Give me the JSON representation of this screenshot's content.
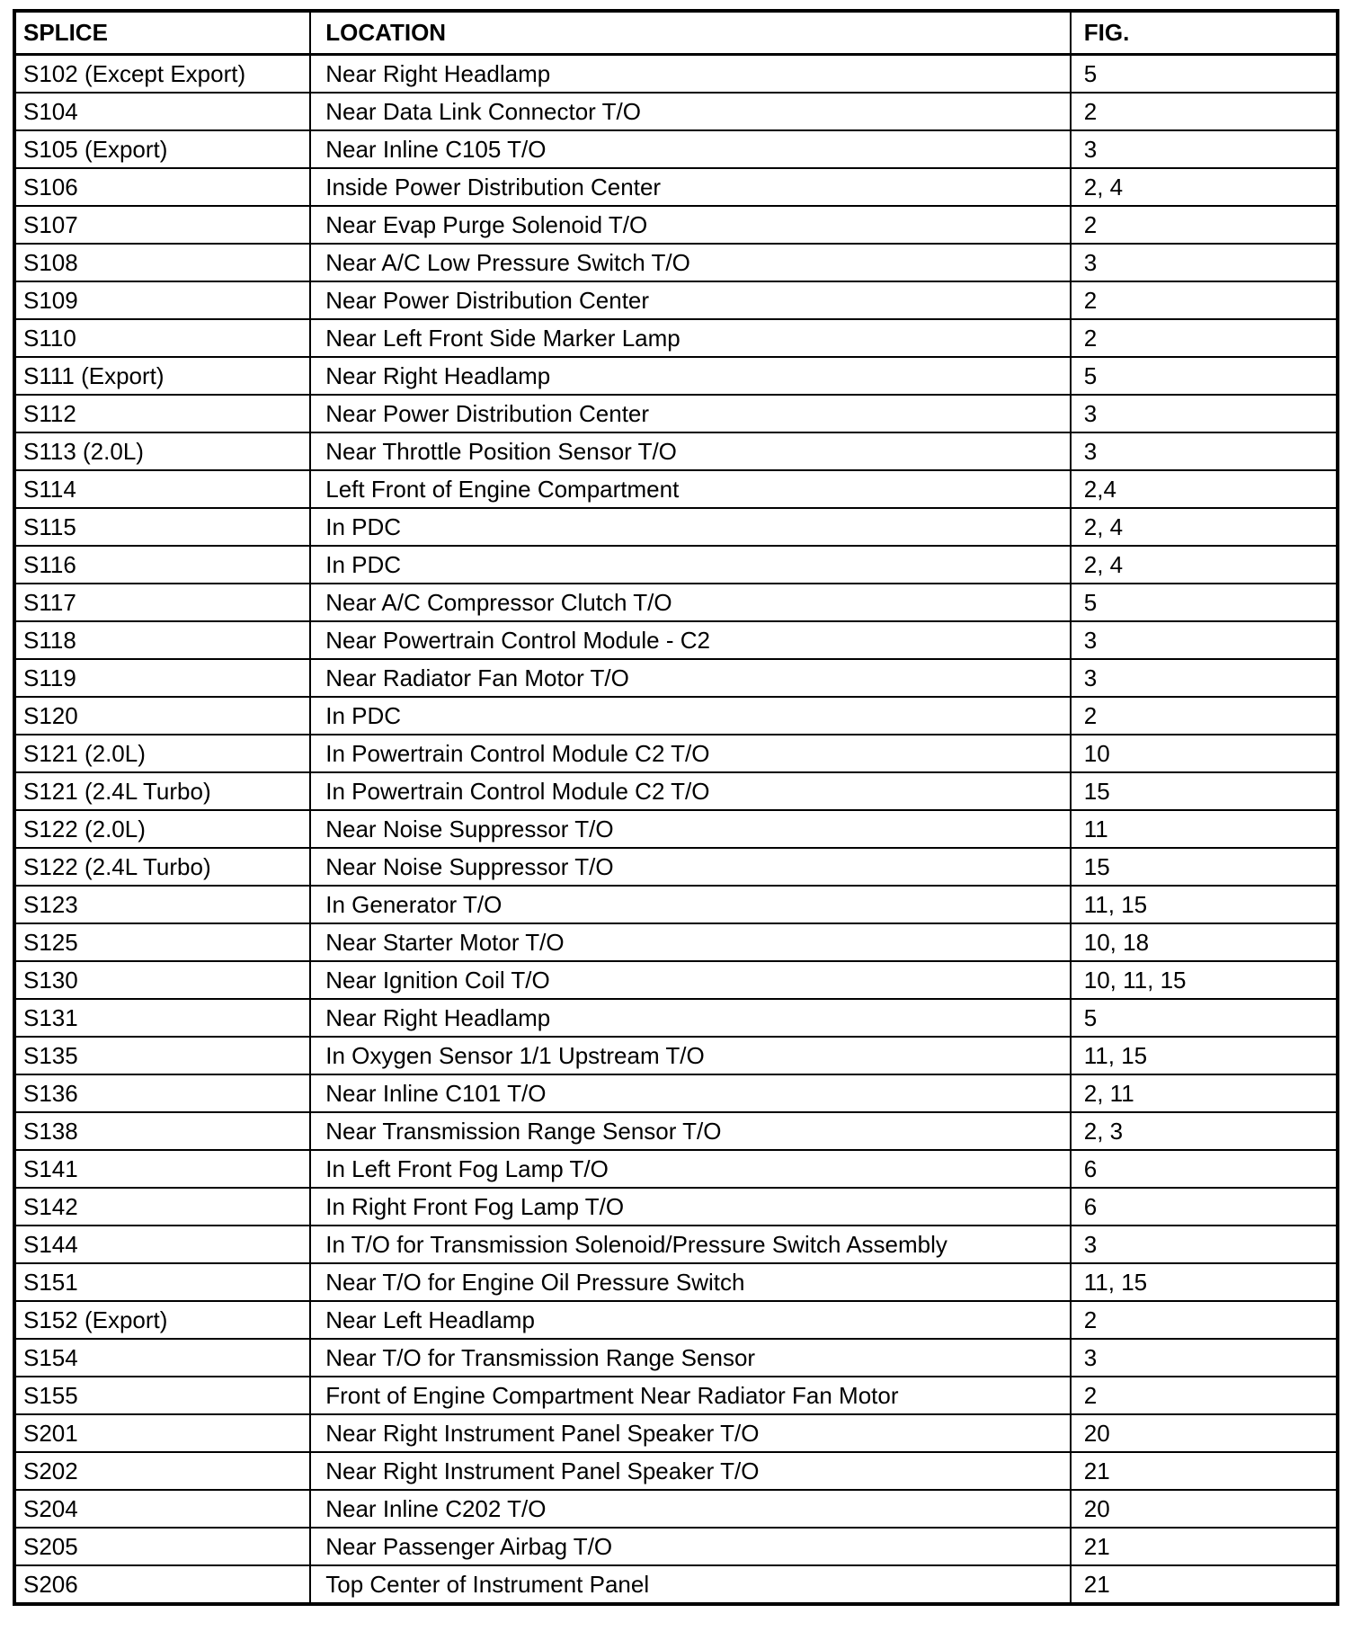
{
  "table": {
    "headers": [
      "SPLICE",
      "LOCATION",
      "FIG."
    ],
    "rows": [
      [
        "S102 (Except Export)",
        "Near Right Headlamp",
        "5"
      ],
      [
        "S104",
        "Near Data Link Connector T/O",
        "2"
      ],
      [
        "S105 (Export)",
        "Near Inline C105 T/O",
        "3"
      ],
      [
        "S106",
        "Inside Power Distribution Center",
        "2, 4"
      ],
      [
        "S107",
        "Near Evap Purge Solenoid T/O",
        "2"
      ],
      [
        "S108",
        "Near A/C Low Pressure Switch T/O",
        "3"
      ],
      [
        "S109",
        "Near Power Distribution Center",
        "2"
      ],
      [
        "S110",
        "Near Left Front Side Marker Lamp",
        "2"
      ],
      [
        "S111 (Export)",
        "Near Right Headlamp",
        "5"
      ],
      [
        "S112",
        "Near Power Distribution Center",
        "3"
      ],
      [
        "S113 (2.0L)",
        "Near Throttle Position Sensor T/O",
        "3"
      ],
      [
        "S114",
        "Left Front of Engine Compartment",
        "2,4"
      ],
      [
        "S115",
        "In PDC",
        "2, 4"
      ],
      [
        "S116",
        "In PDC",
        "2, 4"
      ],
      [
        "S117",
        "Near A/C Compressor Clutch T/O",
        "5"
      ],
      [
        "S118",
        "Near Powertrain Control Module - C2",
        "3"
      ],
      [
        "S119",
        "Near Radiator Fan Motor T/O",
        "3"
      ],
      [
        "S120",
        "In PDC",
        "2"
      ],
      [
        "S121 (2.0L)",
        "In Powertrain Control Module C2 T/O",
        "10"
      ],
      [
        "S121 (2.4L Turbo)",
        "In Powertrain Control Module C2 T/O",
        "15"
      ],
      [
        "S122 (2.0L)",
        "Near Noise Suppressor T/O",
        "11"
      ],
      [
        "S122 (2.4L Turbo)",
        "Near Noise Suppressor T/O",
        "15"
      ],
      [
        "S123",
        "In Generator T/O",
        "11, 15"
      ],
      [
        "S125",
        "Near Starter Motor T/O",
        "10, 18"
      ],
      [
        "S130",
        "Near Ignition Coil T/O",
        "10, 11, 15"
      ],
      [
        "S131",
        "Near Right Headlamp",
        "5"
      ],
      [
        "S135",
        "In Oxygen Sensor 1/1 Upstream T/O",
        "11, 15"
      ],
      [
        "S136",
        "Near Inline C101 T/O",
        "2, 11"
      ],
      [
        "S138",
        "Near Transmission Range Sensor T/O",
        "2, 3"
      ],
      [
        "S141",
        "In Left Front Fog Lamp T/O",
        "6"
      ],
      [
        "S142",
        "In Right Front Fog Lamp T/O",
        "6"
      ],
      [
        "S144",
        "In T/O for Transmission Solenoid/Pressure Switch Assembly",
        "3"
      ],
      [
        "S151",
        "Near T/O for Engine Oil Pressure Switch",
        "11, 15"
      ],
      [
        "S152 (Export)",
        "Near Left Headlamp",
        "2"
      ],
      [
        "S154",
        "Near T/O for Transmission Range Sensor",
        "3"
      ],
      [
        "S155",
        "Front of Engine Compartment Near Radiator Fan Motor",
        "2"
      ],
      [
        "S201",
        "Near Right Instrument Panel Speaker T/O",
        "20"
      ],
      [
        "S202",
        "Near Right Instrument Panel Speaker T/O",
        "21"
      ],
      [
        "S204",
        "Near Inline C202 T/O",
        "20"
      ],
      [
        "S205",
        "Near Passenger Airbag T/O",
        "21"
      ],
      [
        "S206",
        "Top Center of Instrument Panel",
        "21"
      ]
    ]
  }
}
